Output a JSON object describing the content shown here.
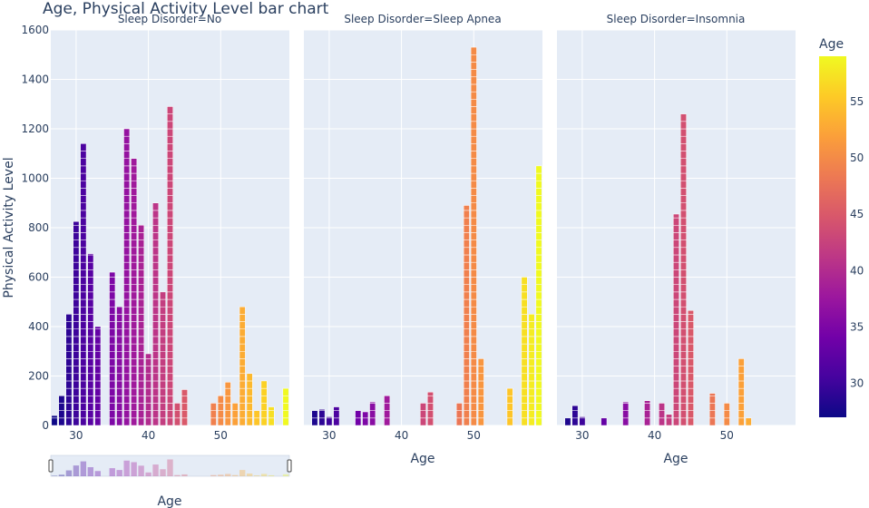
{
  "chart_data": {
    "type": "bar",
    "title": "Age, Physical Activity Level bar chart",
    "ylabel": "Physical Activity Level",
    "xlabel": "Age",
    "ylim": [
      0,
      1600
    ],
    "y_ticks": [
      0,
      200,
      400,
      600,
      800,
      1000,
      1200,
      1400,
      1600
    ],
    "x_ticks": [
      30,
      40,
      50
    ],
    "grid": true,
    "bar_stacked_segments": true,
    "colorbar": {
      "title": "Age",
      "range": [
        27,
        59
      ],
      "ticks": [
        30,
        35,
        40,
        45,
        50,
        55
      ],
      "colorscale": "plasma"
    },
    "facets": [
      {
        "title": "Sleep Disorder=No",
        "xlim": [
          26.5,
          59.5
        ],
        "bars": [
          {
            "x": 27,
            "y": 40
          },
          {
            "x": 28,
            "y": 120
          },
          {
            "x": 29,
            "y": 450
          },
          {
            "x": 30,
            "y": 825
          },
          {
            "x": 31,
            "y": 1140
          },
          {
            "x": 32,
            "y": 695
          },
          {
            "x": 33,
            "y": 400
          },
          {
            "x": 35,
            "y": 620
          },
          {
            "x": 36,
            "y": 480
          },
          {
            "x": 37,
            "y": 1200
          },
          {
            "x": 38,
            "y": 1080
          },
          {
            "x": 39,
            "y": 810
          },
          {
            "x": 40,
            "y": 290
          },
          {
            "x": 41,
            "y": 900
          },
          {
            "x": 42,
            "y": 540
          },
          {
            "x": 43,
            "y": 1290
          },
          {
            "x": 44,
            "y": 90
          },
          {
            "x": 45,
            "y": 145
          },
          {
            "x": 49,
            "y": 90
          },
          {
            "x": 50,
            "y": 120
          },
          {
            "x": 51,
            "y": 175
          },
          {
            "x": 52,
            "y": 90
          },
          {
            "x": 53,
            "y": 480
          },
          {
            "x": 54,
            "y": 210
          },
          {
            "x": 55,
            "y": 60
          },
          {
            "x": 56,
            "y": 180
          },
          {
            "x": 57,
            "y": 75
          },
          {
            "x": 59,
            "y": 150
          }
        ]
      },
      {
        "title": "Sleep Disorder=Sleep Apnea",
        "xlim": [
          26.5,
          59.5
        ],
        "bars": [
          {
            "x": 28,
            "y": 60
          },
          {
            "x": 29,
            "y": 65
          },
          {
            "x": 30,
            "y": 35
          },
          {
            "x": 31,
            "y": 75
          },
          {
            "x": 34,
            "y": 60
          },
          {
            "x": 35,
            "y": 55
          },
          {
            "x": 36,
            "y": 95
          },
          {
            "x": 38,
            "y": 120
          },
          {
            "x": 43,
            "y": 90
          },
          {
            "x": 44,
            "y": 135
          },
          {
            "x": 48,
            "y": 90
          },
          {
            "x": 49,
            "y": 890
          },
          {
            "x": 50,
            "y": 1530
          },
          {
            "x": 51,
            "y": 270
          },
          {
            "x": 55,
            "y": 150
          },
          {
            "x": 57,
            "y": 600
          },
          {
            "x": 58,
            "y": 450
          },
          {
            "x": 59,
            "y": 1050
          }
        ]
      },
      {
        "title": "Sleep Disorder=Insomnia",
        "xlim": [
          26.5,
          59.5
        ],
        "bars": [
          {
            "x": 28,
            "y": 30
          },
          {
            "x": 29,
            "y": 80
          },
          {
            "x": 30,
            "y": 35
          },
          {
            "x": 33,
            "y": 30
          },
          {
            "x": 36,
            "y": 95
          },
          {
            "x": 39,
            "y": 100
          },
          {
            "x": 41,
            "y": 90
          },
          {
            "x": 42,
            "y": 45
          },
          {
            "x": 43,
            "y": 855
          },
          {
            "x": 44,
            "y": 1260
          },
          {
            "x": 45,
            "y": 465
          },
          {
            "x": 48,
            "y": 130
          },
          {
            "x": 50,
            "y": 90
          },
          {
            "x": 52,
            "y": 270
          },
          {
            "x": 53,
            "y": 30
          }
        ]
      }
    ],
    "rangeslider": true
  },
  "text": {
    "title": "Age, Physical Activity Level bar chart",
    "ylabel": "Physical Activity Level",
    "xlabel": "Age",
    "colorbar_title": "Age",
    "facet_titles": [
      "Sleep Disorder=No",
      "Sleep Disorder=Sleep Apnea",
      "Sleep Disorder=Insomnia"
    ]
  },
  "colors": {
    "plot_bg": "#e5ecf6",
    "grid": "#ffffff",
    "text": "#2a3f5f"
  }
}
